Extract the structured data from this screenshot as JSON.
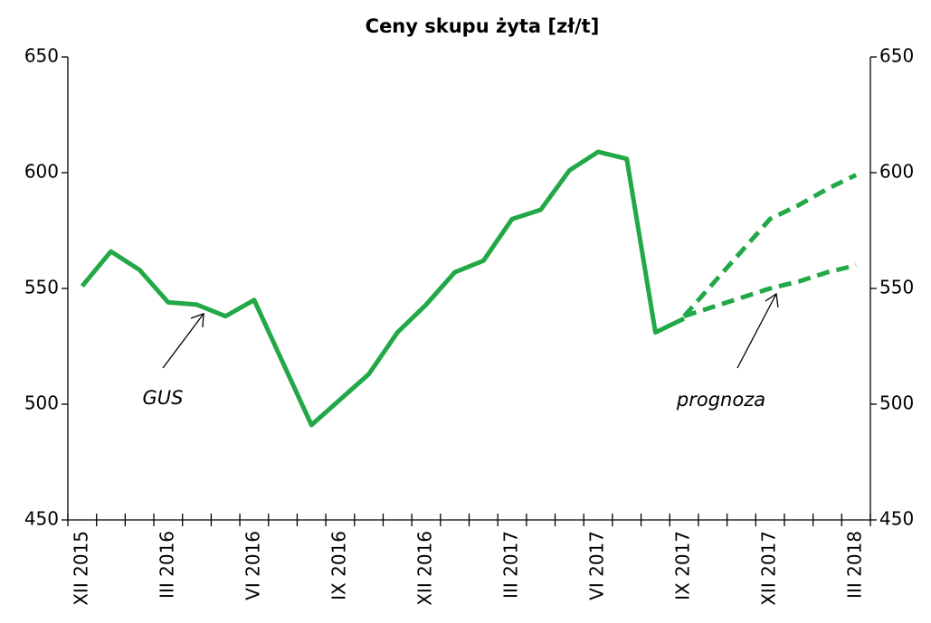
{
  "chart_data": {
    "type": "line",
    "title": "Ceny skupu żyta [zł/t]",
    "categories": [
      "XII 2015",
      null,
      null,
      "III 2016",
      null,
      null,
      "VI 2016",
      null,
      null,
      "IX 2016",
      null,
      null,
      "XII 2016",
      null,
      null,
      "III 2017",
      null,
      null,
      "VI 2017",
      null,
      null,
      "IX 2017",
      null,
      null,
      "XII 2017",
      null,
      null,
      "III 2018"
    ],
    "series": [
      {
        "color": "#22a846",
        "dashed": false,
        "values": [
          551,
          566,
          558,
          544,
          543,
          538,
          545,
          518,
          491,
          502,
          513,
          531,
          543,
          557,
          562,
          580,
          584,
          601,
          609,
          606,
          531,
          537,
          null,
          null,
          null,
          null,
          null,
          null
        ]
      },
      {
        "color": "#22a846",
        "dashed": true,
        "values": [
          null,
          null,
          null,
          null,
          null,
          null,
          null,
          null,
          null,
          null,
          null,
          null,
          null,
          null,
          null,
          null,
          null,
          null,
          null,
          null,
          null,
          538,
          552,
          566,
          580,
          586,
          593,
          599
        ]
      },
      {
        "color": "#22a846",
        "dashed": true,
        "values": [
          null,
          null,
          null,
          null,
          null,
          null,
          null,
          null,
          null,
          null,
          null,
          null,
          null,
          null,
          null,
          null,
          null,
          null,
          null,
          null,
          null,
          538,
          542,
          546,
          550,
          553,
          557,
          560
        ]
      }
    ],
    "annotations": [
      "GUS",
      "prognoza"
    ],
    "ylim": [
      450,
      650
    ],
    "yticks": [
      450,
      500,
      550,
      600,
      650
    ],
    "y2lim": [
      450,
      650
    ],
    "y2ticks": [
      450,
      500,
      550,
      600,
      650
    ]
  }
}
